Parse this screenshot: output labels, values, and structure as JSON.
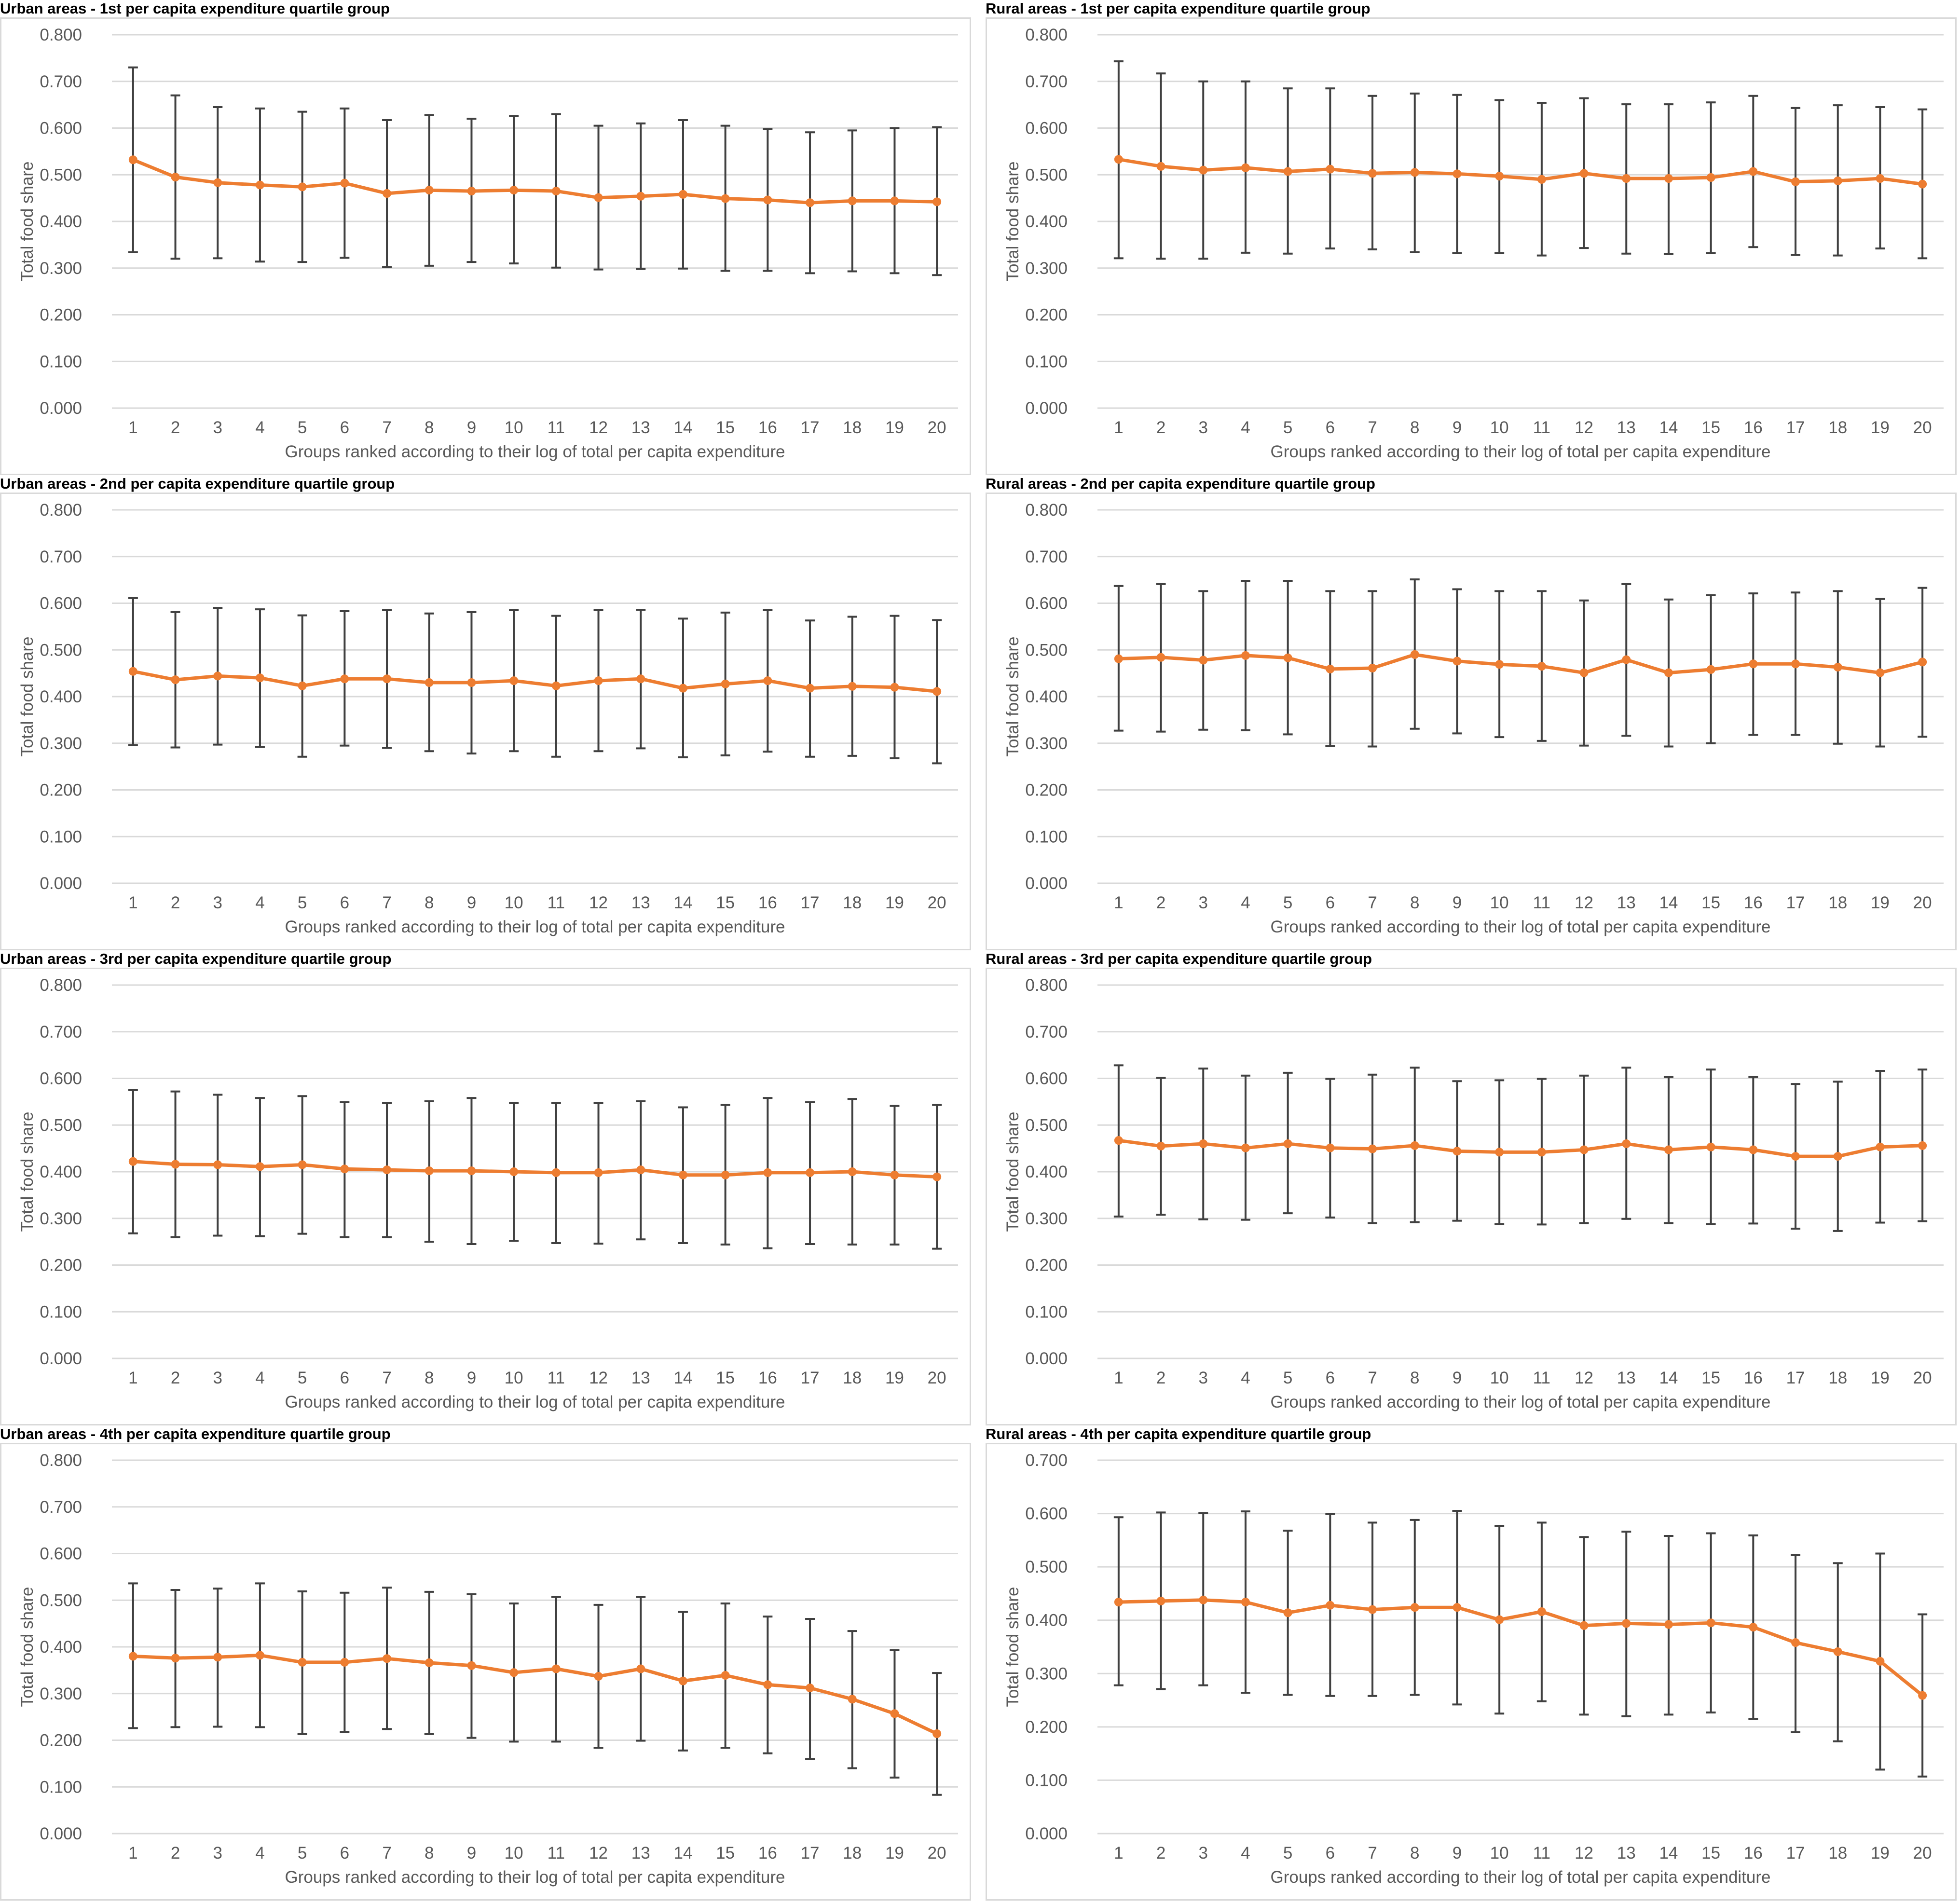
{
  "chart_data": [
    {
      "type": "line",
      "title": "Urban areas - 1st per capita expenditure quartile group",
      "xlabel": "Groups ranked according to their log of total per capita expenditure",
      "ylabel": "Total food share",
      "ylim": [
        0,
        0.8
      ],
      "yticks": [
        "0.000",
        "0.100",
        "0.200",
        "0.300",
        "0.400",
        "0.500",
        "0.600",
        "0.700",
        "0.800"
      ],
      "x": [
        1,
        2,
        3,
        4,
        5,
        6,
        7,
        8,
        9,
        10,
        11,
        12,
        13,
        14,
        15,
        16,
        17,
        18,
        19,
        20
      ],
      "values": [
        0.532,
        0.495,
        0.483,
        0.478,
        0.474,
        0.482,
        0.46,
        0.467,
        0.465,
        0.467,
        0.465,
        0.451,
        0.454,
        0.458,
        0.449,
        0.446,
        0.44,
        0.444,
        0.444,
        0.442
      ],
      "upper": [
        0.73,
        0.67,
        0.645,
        0.642,
        0.635,
        0.642,
        0.617,
        0.628,
        0.62,
        0.626,
        0.63,
        0.605,
        0.61,
        0.617,
        0.605,
        0.598,
        0.591,
        0.595,
        0.6,
        0.602
      ],
      "lower": [
        0.334,
        0.32,
        0.321,
        0.314,
        0.313,
        0.322,
        0.302,
        0.305,
        0.313,
        0.31,
        0.301,
        0.297,
        0.298,
        0.299,
        0.294,
        0.294,
        0.289,
        0.293,
        0.289,
        0.285
      ],
      "grid": true,
      "legend": "none",
      "line_color": "#ED7D31",
      "errorbar_color": "#404040",
      "gridline_color": "#d9d9d9"
    },
    {
      "type": "line",
      "title": "Rural areas - 1st per capita expenditure quartile group",
      "xlabel": "Groups ranked according to their log of total per capita expenditure",
      "ylabel": "Total food share",
      "ylim": [
        0,
        0.8
      ],
      "yticks": [
        "0.000",
        "0.100",
        "0.200",
        "0.300",
        "0.400",
        "0.500",
        "0.600",
        "0.700",
        "0.800"
      ],
      "x": [
        1,
        2,
        3,
        4,
        5,
        6,
        7,
        8,
        9,
        10,
        11,
        12,
        13,
        14,
        15,
        16,
        17,
        18,
        19,
        20
      ],
      "values": [
        0.533,
        0.518,
        0.51,
        0.515,
        0.507,
        0.512,
        0.503,
        0.505,
        0.502,
        0.497,
        0.49,
        0.503,
        0.492,
        0.492,
        0.494,
        0.507,
        0.485,
        0.487,
        0.492,
        0.48
      ],
      "upper": [
        0.743,
        0.717,
        0.7,
        0.7,
        0.685,
        0.685,
        0.669,
        0.674,
        0.671,
        0.66,
        0.654,
        0.664,
        0.651,
        0.651,
        0.655,
        0.669,
        0.643,
        0.649,
        0.645,
        0.64
      ],
      "lower": [
        0.321,
        0.32,
        0.32,
        0.333,
        0.331,
        0.342,
        0.34,
        0.334,
        0.332,
        0.332,
        0.327,
        0.343,
        0.331,
        0.33,
        0.332,
        0.345,
        0.328,
        0.327,
        0.342,
        0.321
      ],
      "grid": true,
      "legend": "none",
      "line_color": "#ED7D31",
      "errorbar_color": "#404040",
      "gridline_color": "#d9d9d9"
    },
    {
      "type": "line",
      "title": "Urban areas - 2nd per capita expenditure quartile group",
      "xlabel": "Groups ranked according to their log of total per capita expenditure",
      "ylabel": "Total food share",
      "ylim": [
        0,
        0.8
      ],
      "yticks": [
        "0.000",
        "0.100",
        "0.200",
        "0.300",
        "0.400",
        "0.500",
        "0.600",
        "0.700",
        "0.800"
      ],
      "x": [
        1,
        2,
        3,
        4,
        5,
        6,
        7,
        8,
        9,
        10,
        11,
        12,
        13,
        14,
        15,
        16,
        17,
        18,
        19,
        20
      ],
      "values": [
        0.454,
        0.436,
        0.444,
        0.44,
        0.423,
        0.438,
        0.438,
        0.43,
        0.43,
        0.434,
        0.423,
        0.434,
        0.438,
        0.418,
        0.427,
        0.434,
        0.418,
        0.422,
        0.42,
        0.411
      ],
      "upper": [
        0.611,
        0.581,
        0.59,
        0.587,
        0.574,
        0.583,
        0.585,
        0.578,
        0.581,
        0.585,
        0.573,
        0.585,
        0.586,
        0.567,
        0.58,
        0.585,
        0.563,
        0.571,
        0.573,
        0.564
      ],
      "lower": [
        0.296,
        0.291,
        0.297,
        0.292,
        0.271,
        0.295,
        0.29,
        0.283,
        0.278,
        0.283,
        0.271,
        0.283,
        0.289,
        0.27,
        0.274,
        0.282,
        0.271,
        0.273,
        0.268,
        0.257
      ],
      "grid": true,
      "legend": "none",
      "line_color": "#ED7D31",
      "errorbar_color": "#404040",
      "gridline_color": "#d9d9d9"
    },
    {
      "type": "line",
      "title": "Rural areas - 2nd per capita expenditure quartile group",
      "xlabel": "Groups ranked according to their log of total per capita expenditure",
      "ylabel": "Total food share",
      "ylim": [
        0,
        0.8
      ],
      "yticks": [
        "0.000",
        "0.100",
        "0.200",
        "0.300",
        "0.400",
        "0.500",
        "0.600",
        "0.700",
        "0.800"
      ],
      "x": [
        1,
        2,
        3,
        4,
        5,
        6,
        7,
        8,
        9,
        10,
        11,
        12,
        13,
        14,
        15,
        16,
        17,
        18,
        19,
        20
      ],
      "values": [
        0.481,
        0.484,
        0.478,
        0.488,
        0.483,
        0.459,
        0.461,
        0.49,
        0.476,
        0.469,
        0.465,
        0.451,
        0.479,
        0.451,
        0.458,
        0.47,
        0.47,
        0.463,
        0.451,
        0.474
      ],
      "upper": [
        0.637,
        0.641,
        0.626,
        0.648,
        0.648,
        0.626,
        0.626,
        0.651,
        0.63,
        0.626,
        0.626,
        0.606,
        0.641,
        0.608,
        0.617,
        0.621,
        0.623,
        0.626,
        0.609,
        0.633
      ],
      "lower": [
        0.327,
        0.325,
        0.329,
        0.328,
        0.319,
        0.294,
        0.293,
        0.331,
        0.321,
        0.313,
        0.305,
        0.295,
        0.316,
        0.293,
        0.3,
        0.318,
        0.318,
        0.299,
        0.293,
        0.314
      ],
      "grid": true,
      "legend": "none",
      "line_color": "#ED7D31",
      "errorbar_color": "#404040",
      "gridline_color": "#d9d9d9"
    },
    {
      "type": "line",
      "title": "Urban areas - 3rd per capita expenditure quartile group",
      "xlabel": "Groups ranked according to their log of total per capita expenditure",
      "ylabel": "Total food share",
      "ylim": [
        0,
        0.8
      ],
      "yticks": [
        "0.000",
        "0.100",
        "0.200",
        "0.300",
        "0.400",
        "0.500",
        "0.600",
        "0.700",
        "0.800"
      ],
      "x": [
        1,
        2,
        3,
        4,
        5,
        6,
        7,
        8,
        9,
        10,
        11,
        12,
        13,
        14,
        15,
        16,
        17,
        18,
        19,
        20
      ],
      "values": [
        0.422,
        0.416,
        0.415,
        0.411,
        0.415,
        0.406,
        0.404,
        0.402,
        0.402,
        0.4,
        0.398,
        0.398,
        0.404,
        0.393,
        0.393,
        0.398,
        0.398,
        0.4,
        0.393,
        0.389
      ],
      "upper": [
        0.575,
        0.572,
        0.565,
        0.558,
        0.562,
        0.549,
        0.547,
        0.551,
        0.558,
        0.547,
        0.547,
        0.547,
        0.551,
        0.538,
        0.543,
        0.558,
        0.549,
        0.556,
        0.541,
        0.543
      ],
      "lower": [
        0.268,
        0.26,
        0.263,
        0.262,
        0.267,
        0.26,
        0.26,
        0.25,
        0.245,
        0.252,
        0.247,
        0.246,
        0.255,
        0.247,
        0.244,
        0.236,
        0.245,
        0.244,
        0.244,
        0.235
      ],
      "grid": true,
      "legend": "none",
      "line_color": "#ED7D31",
      "errorbar_color": "#404040",
      "gridline_color": "#d9d9d9"
    },
    {
      "type": "line",
      "title": "Rural areas - 3rd per capita expenditure quartile group",
      "xlabel": "Groups ranked according to their log of total per capita expenditure",
      "ylabel": "Total food share",
      "ylim": [
        0,
        0.8
      ],
      "yticks": [
        "0.000",
        "0.100",
        "0.200",
        "0.300",
        "0.400",
        "0.500",
        "0.600",
        "0.700",
        "0.800"
      ],
      "x": [
        1,
        2,
        3,
        4,
        5,
        6,
        7,
        8,
        9,
        10,
        11,
        12,
        13,
        14,
        15,
        16,
        17,
        18,
        19,
        20
      ],
      "values": [
        0.467,
        0.455,
        0.46,
        0.451,
        0.46,
        0.451,
        0.449,
        0.456,
        0.444,
        0.442,
        0.442,
        0.447,
        0.46,
        0.447,
        0.453,
        0.447,
        0.433,
        0.433,
        0.453,
        0.456
      ],
      "upper": [
        0.628,
        0.601,
        0.621,
        0.606,
        0.612,
        0.599,
        0.608,
        0.623,
        0.594,
        0.596,
        0.599,
        0.606,
        0.623,
        0.603,
        0.619,
        0.603,
        0.588,
        0.593,
        0.616,
        0.619
      ],
      "lower": [
        0.304,
        0.308,
        0.298,
        0.297,
        0.311,
        0.302,
        0.29,
        0.292,
        0.295,
        0.288,
        0.287,
        0.29,
        0.299,
        0.29,
        0.288,
        0.289,
        0.278,
        0.273,
        0.291,
        0.294
      ],
      "grid": true,
      "legend": "none",
      "line_color": "#ED7D31",
      "errorbar_color": "#404040",
      "gridline_color": "#d9d9d9"
    },
    {
      "type": "line",
      "title": "Urban areas - 4th per capita expenditure quartile group",
      "xlabel": "Groups ranked according to their log of total per capita expenditure",
      "ylabel": "Total food share",
      "ylim": [
        0,
        0.8
      ],
      "yticks": [
        "0.000",
        "0.100",
        "0.200",
        "0.300",
        "0.400",
        "0.500",
        "0.600",
        "0.700",
        "0.800"
      ],
      "x": [
        1,
        2,
        3,
        4,
        5,
        6,
        7,
        8,
        9,
        10,
        11,
        12,
        13,
        14,
        15,
        16,
        17,
        18,
        19,
        20
      ],
      "values": [
        0.38,
        0.376,
        0.378,
        0.382,
        0.367,
        0.367,
        0.375,
        0.366,
        0.36,
        0.345,
        0.353,
        0.337,
        0.353,
        0.327,
        0.339,
        0.319,
        0.312,
        0.288,
        0.257,
        0.214
      ],
      "upper": [
        0.536,
        0.522,
        0.525,
        0.536,
        0.519,
        0.516,
        0.527,
        0.518,
        0.513,
        0.493,
        0.507,
        0.49,
        0.507,
        0.475,
        0.493,
        0.465,
        0.46,
        0.434,
        0.393,
        0.344
      ],
      "lower": [
        0.226,
        0.228,
        0.229,
        0.228,
        0.213,
        0.218,
        0.224,
        0.213,
        0.205,
        0.197,
        0.197,
        0.184,
        0.199,
        0.178,
        0.184,
        0.172,
        0.16,
        0.14,
        0.12,
        0.083
      ],
      "grid": true,
      "legend": "none",
      "line_color": "#ED7D31",
      "errorbar_color": "#404040",
      "gridline_color": "#d9d9d9"
    },
    {
      "type": "line",
      "title": "Rural areas - 4th per capita expenditure quartile group",
      "xlabel": "Groups ranked according to their log of total per capita expenditure",
      "ylabel": "Total food share",
      "ylim": [
        0,
        0.7
      ],
      "yticks": [
        "0.000",
        "0.100",
        "0.200",
        "0.300",
        "0.400",
        "0.500",
        "0.600",
        "0.700"
      ],
      "x": [
        1,
        2,
        3,
        4,
        5,
        6,
        7,
        8,
        9,
        10,
        11,
        12,
        13,
        14,
        15,
        16,
        17,
        18,
        19,
        20
      ],
      "values": [
        0.434,
        0.436,
        0.438,
        0.434,
        0.414,
        0.428,
        0.42,
        0.424,
        0.424,
        0.401,
        0.416,
        0.39,
        0.394,
        0.392,
        0.395,
        0.387,
        0.358,
        0.341,
        0.323,
        0.259
      ],
      "upper": [
        0.593,
        0.602,
        0.601,
        0.604,
        0.568,
        0.599,
        0.583,
        0.588,
        0.605,
        0.577,
        0.583,
        0.556,
        0.566,
        0.558,
        0.563,
        0.559,
        0.522,
        0.507,
        0.525,
        0.411
      ],
      "lower": [
        0.278,
        0.271,
        0.278,
        0.264,
        0.26,
        0.258,
        0.258,
        0.26,
        0.242,
        0.225,
        0.248,
        0.223,
        0.22,
        0.223,
        0.227,
        0.215,
        0.19,
        0.173,
        0.12,
        0.107
      ],
      "grid": true,
      "legend": "none",
      "line_color": "#ED7D31",
      "errorbar_color": "#404040",
      "gridline_color": "#d9d9d9"
    }
  ]
}
